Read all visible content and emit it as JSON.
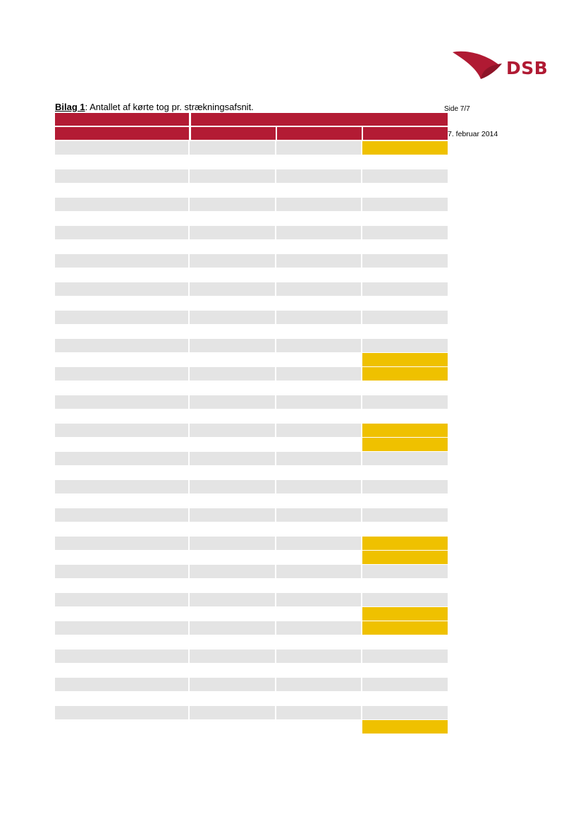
{
  "logo": {
    "text": "DSB",
    "color": "#b01a33"
  },
  "title": {
    "bold": "Bilag 1",
    "rest": ": Antallet af kørte tog pr. strækningsafsnit."
  },
  "page_number": "Side 7/7",
  "date": "7. februar 2014",
  "colors": {
    "header": "#b31b34",
    "shaded": "#e4e4e4",
    "plain": "#ffffff",
    "highlight": "#efc100"
  },
  "rows": [
    {
      "shaded": true,
      "highlight": true
    },
    {
      "shaded": false,
      "highlight": false
    },
    {
      "shaded": true,
      "highlight": false
    },
    {
      "shaded": false,
      "highlight": false
    },
    {
      "shaded": true,
      "highlight": false
    },
    {
      "shaded": false,
      "highlight": false
    },
    {
      "shaded": true,
      "highlight": false
    },
    {
      "shaded": false,
      "highlight": false
    },
    {
      "shaded": true,
      "highlight": false
    },
    {
      "shaded": false,
      "highlight": false
    },
    {
      "shaded": true,
      "highlight": false
    },
    {
      "shaded": false,
      "highlight": false
    },
    {
      "shaded": true,
      "highlight": false
    },
    {
      "shaded": false,
      "highlight": false
    },
    {
      "shaded": true,
      "highlight": false
    },
    {
      "shaded": false,
      "highlight": true
    },
    {
      "shaded": true,
      "highlight": true
    },
    {
      "shaded": false,
      "highlight": false
    },
    {
      "shaded": true,
      "highlight": false
    },
    {
      "shaded": false,
      "highlight": false
    },
    {
      "shaded": true,
      "highlight": true
    },
    {
      "shaded": false,
      "highlight": true
    },
    {
      "shaded": true,
      "highlight": false
    },
    {
      "shaded": false,
      "highlight": false
    },
    {
      "shaded": true,
      "highlight": false
    },
    {
      "shaded": false,
      "highlight": false
    },
    {
      "shaded": true,
      "highlight": false
    },
    {
      "shaded": false,
      "highlight": false
    },
    {
      "shaded": true,
      "highlight": true
    },
    {
      "shaded": false,
      "highlight": true
    },
    {
      "shaded": true,
      "highlight": false
    },
    {
      "shaded": false,
      "highlight": false
    },
    {
      "shaded": true,
      "highlight": false
    },
    {
      "shaded": false,
      "highlight": true
    },
    {
      "shaded": true,
      "highlight": true
    },
    {
      "shaded": false,
      "highlight": false
    },
    {
      "shaded": true,
      "highlight": false
    },
    {
      "shaded": false,
      "highlight": false
    },
    {
      "shaded": true,
      "highlight": false
    },
    {
      "shaded": false,
      "highlight": false
    },
    {
      "shaded": true,
      "highlight": false
    },
    {
      "shaded": false,
      "highlight": true
    }
  ]
}
